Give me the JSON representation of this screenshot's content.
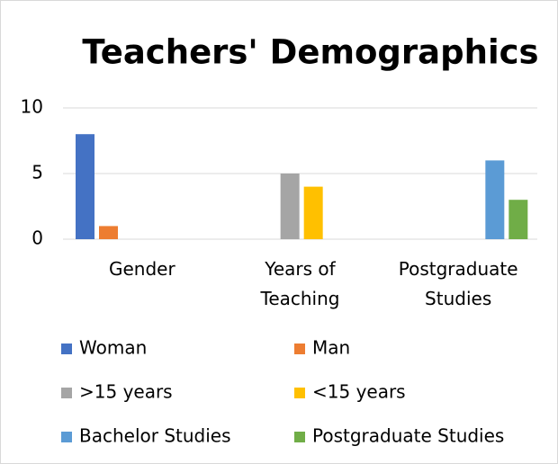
{
  "chart_data": {
    "type": "bar",
    "title": "Teachers' Demographics",
    "categories": [
      "Gender",
      "Years of Teaching",
      "Postgraduate Studies"
    ],
    "series": [
      {
        "name": "Woman",
        "color": "#4472c4",
        "values": [
          8,
          null,
          null
        ]
      },
      {
        "name": "Man",
        "color": "#ed7d31",
        "values": [
          1,
          null,
          null
        ]
      },
      {
        "name": ">15 years",
        "color": "#a5a5a5",
        "values": [
          null,
          5,
          null
        ]
      },
      {
        "name": "<15 years",
        "color": "#ffc000",
        "values": [
          null,
          4,
          null
        ]
      },
      {
        "name": "Bachelor Studies",
        "color": "#5b9bd5",
        "values": [
          null,
          null,
          6
        ]
      },
      {
        "name": "Postgraduate Studies",
        "color": "#70ad47",
        "values": [
          null,
          null,
          3
        ]
      }
    ],
    "ylim": [
      0,
      10
    ],
    "yticks": [
      0,
      5,
      10
    ],
    "grid": true,
    "legend": "bottom"
  }
}
